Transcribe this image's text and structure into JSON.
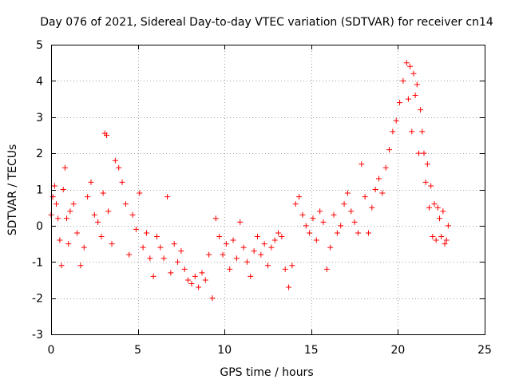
{
  "chart_data": {
    "type": "scatter",
    "title": "Day 076 of 2021, Sidereal Day-to-day VTEC variation (SDTVAR) for receiver cn14",
    "xlabel": "GPS time / hours",
    "ylabel": "SDTVAR / TECUs",
    "xlim": [
      0,
      25
    ],
    "ylim": [
      -3,
      5
    ],
    "x_ticks": [
      0,
      5,
      10,
      15,
      20,
      25
    ],
    "x_tick_labels": [
      "0",
      "5",
      "10",
      "15",
      "20",
      "25"
    ],
    "y_ticks": [
      -3,
      -2,
      -1,
      0,
      1,
      2,
      3,
      4,
      5
    ],
    "y_tick_labels": [
      "-3",
      "-2",
      "-1",
      "0",
      "1",
      "2",
      "3",
      "4",
      "5"
    ],
    "grid": true,
    "marker": "+",
    "color": "#ff0000",
    "series": [
      {
        "name": "SDTVAR",
        "points": [
          [
            0.0,
            0.3
          ],
          [
            0.1,
            0.8
          ],
          [
            0.2,
            1.1
          ],
          [
            0.3,
            0.6
          ],
          [
            0.4,
            0.2
          ],
          [
            0.5,
            -0.4
          ],
          [
            0.6,
            -1.1
          ],
          [
            0.7,
            1.0
          ],
          [
            0.8,
            1.6
          ],
          [
            0.9,
            0.2
          ],
          [
            1.0,
            -0.5
          ],
          [
            1.1,
            0.4
          ],
          [
            1.3,
            0.6
          ],
          [
            1.5,
            -0.2
          ],
          [
            1.7,
            -1.1
          ],
          [
            1.9,
            -0.6
          ],
          [
            2.1,
            0.8
          ],
          [
            2.3,
            1.2
          ],
          [
            2.5,
            0.3
          ],
          [
            2.7,
            0.1
          ],
          [
            2.9,
            -0.3
          ],
          [
            3.0,
            0.9
          ],
          [
            3.1,
            2.55
          ],
          [
            3.2,
            2.5
          ],
          [
            3.3,
            0.4
          ],
          [
            3.5,
            -0.5
          ],
          [
            3.7,
            1.8
          ],
          [
            3.9,
            1.6
          ],
          [
            4.1,
            1.2
          ],
          [
            4.3,
            0.6
          ],
          [
            4.5,
            -0.8
          ],
          [
            4.7,
            0.3
          ],
          [
            4.9,
            -0.1
          ],
          [
            5.1,
            0.9
          ],
          [
            5.3,
            -0.6
          ],
          [
            5.5,
            -0.2
          ],
          [
            5.7,
            -0.9
          ],
          [
            5.9,
            -1.4
          ],
          [
            6.1,
            -0.3
          ],
          [
            6.3,
            -0.6
          ],
          [
            6.5,
            -0.9
          ],
          [
            6.7,
            0.8
          ],
          [
            6.9,
            -1.3
          ],
          [
            7.1,
            -0.5
          ],
          [
            7.3,
            -1.0
          ],
          [
            7.5,
            -0.7
          ],
          [
            7.7,
            -1.2
          ],
          [
            7.9,
            -1.5
          ],
          [
            8.1,
            -1.6
          ],
          [
            8.3,
            -1.4
          ],
          [
            8.5,
            -1.7
          ],
          [
            8.7,
            -1.3
          ],
          [
            8.9,
            -1.5
          ],
          [
            9.1,
            -0.8
          ],
          [
            9.3,
            -2.0
          ],
          [
            9.5,
            0.2
          ],
          [
            9.7,
            -0.3
          ],
          [
            9.9,
            -0.8
          ],
          [
            10.1,
            -0.5
          ],
          [
            10.3,
            -1.2
          ],
          [
            10.5,
            -0.4
          ],
          [
            10.7,
            -0.9
          ],
          [
            10.9,
            0.1
          ],
          [
            11.1,
            -0.6
          ],
          [
            11.3,
            -1.0
          ],
          [
            11.5,
            -1.4
          ],
          [
            11.7,
            -0.7
          ],
          [
            11.9,
            -0.3
          ],
          [
            12.1,
            -0.8
          ],
          [
            12.3,
            -0.5
          ],
          [
            12.5,
            -1.1
          ],
          [
            12.7,
            -0.6
          ],
          [
            12.9,
            -0.4
          ],
          [
            13.1,
            -0.2
          ],
          [
            13.3,
            -0.3
          ],
          [
            13.5,
            -1.2
          ],
          [
            13.7,
            -1.7
          ],
          [
            13.9,
            -1.1
          ],
          [
            14.1,
            0.6
          ],
          [
            14.3,
            0.8
          ],
          [
            14.5,
            0.3
          ],
          [
            14.7,
            0.0
          ],
          [
            14.9,
            -0.2
          ],
          [
            15.1,
            0.2
          ],
          [
            15.3,
            -0.4
          ],
          [
            15.5,
            0.4
          ],
          [
            15.7,
            0.1
          ],
          [
            15.9,
            -1.2
          ],
          [
            16.1,
            -0.6
          ],
          [
            16.3,
            0.3
          ],
          [
            16.5,
            -0.2
          ],
          [
            16.7,
            0.0
          ],
          [
            16.9,
            0.6
          ],
          [
            17.1,
            0.9
          ],
          [
            17.3,
            0.4
          ],
          [
            17.5,
            0.1
          ],
          [
            17.7,
            -0.2
          ],
          [
            17.9,
            1.7
          ],
          [
            18.1,
            0.8
          ],
          [
            18.3,
            -0.2
          ],
          [
            18.5,
            0.5
          ],
          [
            18.7,
            1.0
          ],
          [
            18.9,
            1.3
          ],
          [
            19.1,
            0.9
          ],
          [
            19.3,
            1.6
          ],
          [
            19.5,
            2.1
          ],
          [
            19.7,
            2.6
          ],
          [
            19.9,
            2.9
          ],
          [
            20.1,
            3.4
          ],
          [
            20.3,
            4.0
          ],
          [
            20.5,
            4.5
          ],
          [
            20.6,
            3.5
          ],
          [
            20.7,
            4.4
          ],
          [
            20.8,
            2.6
          ],
          [
            20.9,
            4.2
          ],
          [
            21.0,
            3.6
          ],
          [
            21.1,
            3.9
          ],
          [
            21.2,
            2.0
          ],
          [
            21.3,
            3.2
          ],
          [
            21.4,
            2.6
          ],
          [
            21.5,
            2.0
          ],
          [
            21.6,
            1.2
          ],
          [
            21.7,
            1.7
          ],
          [
            21.8,
            0.5
          ],
          [
            21.9,
            1.1
          ],
          [
            22.0,
            -0.3
          ],
          [
            22.1,
            0.6
          ],
          [
            22.2,
            -0.4
          ],
          [
            22.3,
            0.5
          ],
          [
            22.4,
            0.2
          ],
          [
            22.5,
            -0.3
          ],
          [
            22.6,
            0.4
          ],
          [
            22.7,
            -0.5
          ],
          [
            22.8,
            -0.4
          ],
          [
            22.9,
            0.0
          ]
        ]
      }
    ]
  }
}
